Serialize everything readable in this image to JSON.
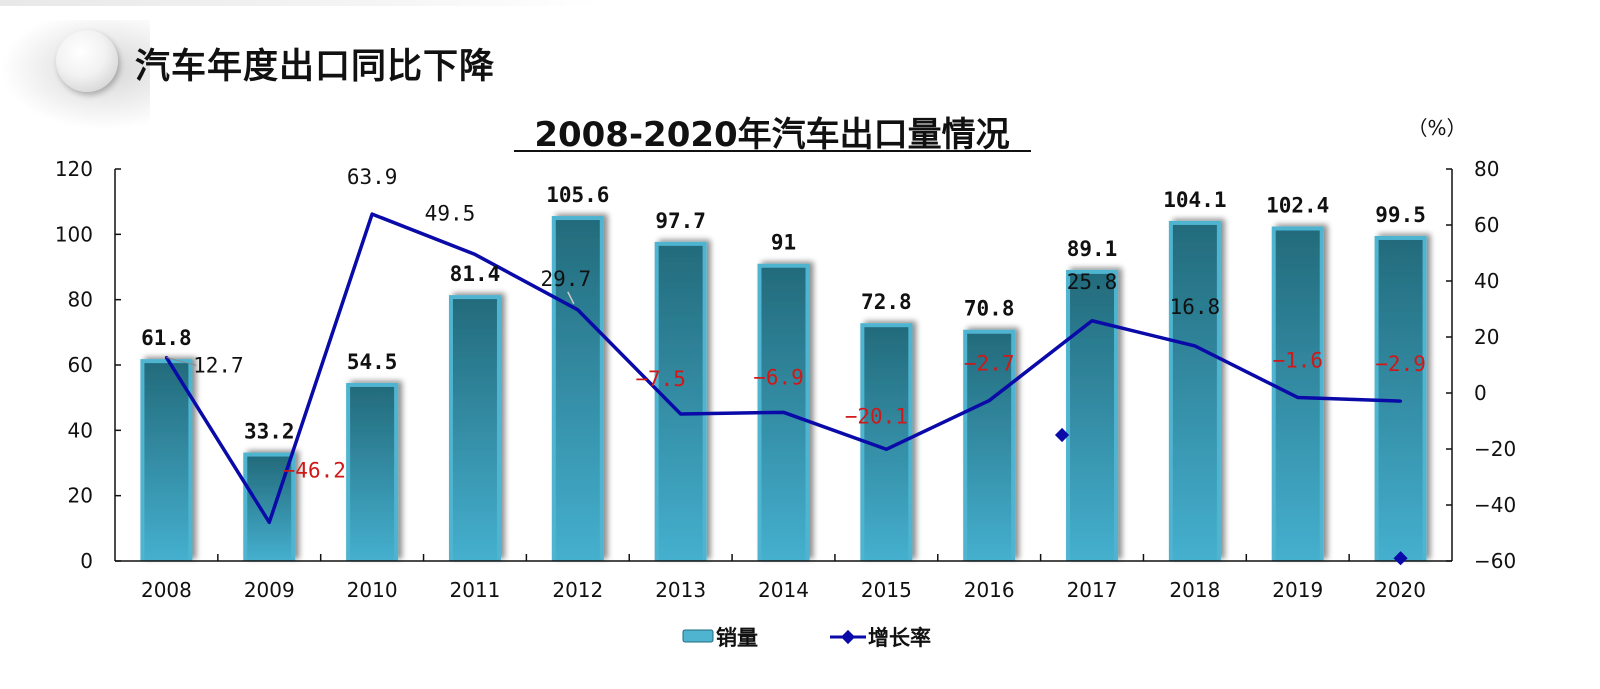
{
  "section": {
    "title": "汽车年度出口同比下降"
  },
  "colors": {
    "bar_top": "#236b7c",
    "bar_bottom": "#45b0cf",
    "bar_edge": "#4fb4d0",
    "line": "#0a0aa8",
    "rate_negative": "#d01818",
    "rate_positive": "#111111",
    "axis": "#111111"
  },
  "chart_data": {
    "type": "bar+line",
    "title": "2008-2020年汽车出口量情况",
    "right_axis_unit": "（%）",
    "categories": [
      "2008",
      "2009",
      "2010",
      "2011",
      "2012",
      "2013",
      "2014",
      "2015",
      "2016",
      "2017",
      "2018",
      "2019",
      "2020"
    ],
    "series": [
      {
        "name": "销量",
        "type": "bar",
        "axis": "left",
        "values": [
          61.8,
          33.2,
          54.5,
          81.4,
          105.6,
          97.7,
          91,
          72.8,
          70.8,
          89.1,
          104.1,
          102.4,
          99.5
        ],
        "labels": [
          "61.8",
          "33.2",
          "54.5",
          "81.4",
          "105.6",
          "97.7",
          "91",
          "72.8",
          "70.8",
          "89.1",
          "104.1",
          "102.4",
          "99.5"
        ]
      },
      {
        "name": "增长率",
        "type": "line",
        "axis": "right",
        "values": [
          12.7,
          -46.2,
          63.9,
          49.5,
          29.7,
          -7.5,
          -6.9,
          -20.1,
          -2.7,
          25.8,
          16.8,
          -1.6,
          -2.9
        ],
        "labels": [
          "12.7",
          "-46.2",
          "63.9",
          "49.5",
          "29.7",
          "-7.5",
          "-6.9",
          "-20.1",
          "-2.7",
          "25.8",
          "16.8",
          "-1.6",
          "-2.9"
        ]
      }
    ],
    "stray_markers": [
      {
        "category": "2017",
        "value": -15
      },
      {
        "category": "2020",
        "value": -59
      }
    ],
    "left_axis": {
      "ylim": [
        0,
        120
      ],
      "ticks": [
        "0",
        "20",
        "40",
        "60",
        "80",
        "100",
        "120"
      ]
    },
    "right_axis": {
      "ylim": [
        -60,
        80
      ],
      "ticks": [
        "-60",
        "-40",
        "-20",
        "0",
        "20",
        "40",
        "60",
        "80"
      ]
    },
    "grid": false,
    "legend": {
      "placement": "bottom",
      "entries": [
        "销量",
        "增长率"
      ]
    }
  }
}
